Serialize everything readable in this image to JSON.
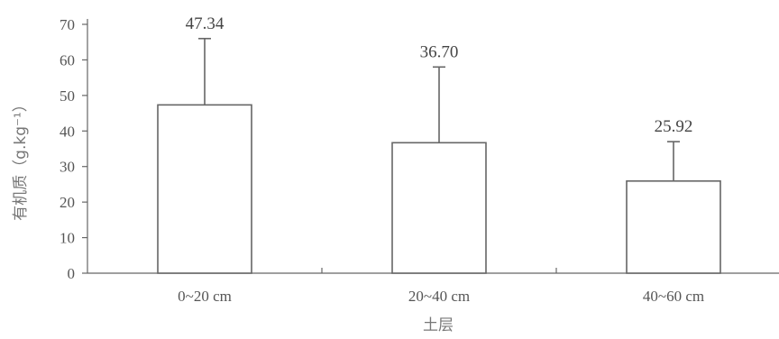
{
  "chart_data": {
    "type": "bar",
    "categories": [
      "0~20 cm",
      "20~40 cm",
      "40~60 cm"
    ],
    "values": [
      47.34,
      36.7,
      25.92
    ],
    "error_upper": [
      66,
      58,
      37
    ],
    "data_labels": [
      "47.34",
      "36.70",
      "25.92"
    ],
    "xlabel": "土层",
    "ylabel": "有机质（g.kg⁻¹）",
    "ylim": [
      0,
      70
    ],
    "yticks": [
      0,
      10,
      20,
      30,
      40,
      50,
      60,
      70
    ],
    "grid": false,
    "colors": {
      "bar_fill": "#ffffff",
      "bar_stroke": "#666666",
      "axis": "#666666"
    }
  }
}
